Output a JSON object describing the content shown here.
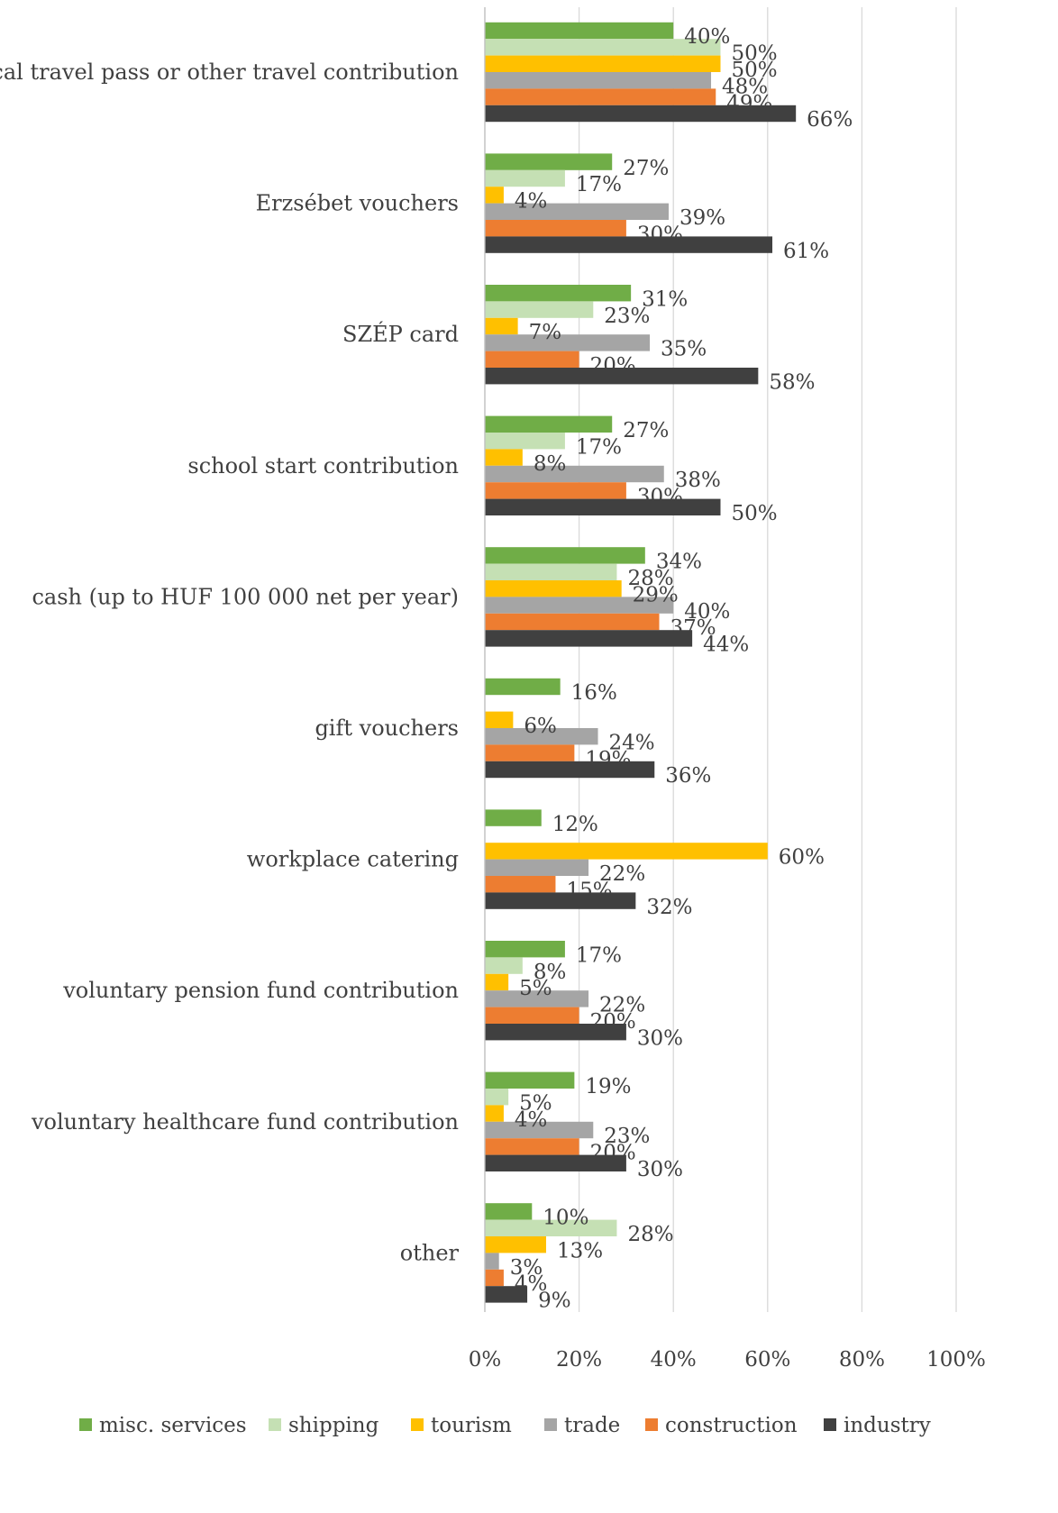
{
  "chart_data": {
    "type": "bar",
    "orientation": "horizontal",
    "title": "",
    "xlabel": "",
    "ylabel": "",
    "xlim": [
      0,
      100
    ],
    "x_ticks": [
      "0%",
      "20%",
      "40%",
      "60%",
      "80%",
      "100%"
    ],
    "value_format": "percent",
    "grid": true,
    "legend_position": "bottom",
    "categories": [
      "local travel pass or other travel contribution",
      "Erzsébet vouchers",
      "SZÉP card",
      "school start contribution",
      "cash (up to HUF 100 000 net per year)",
      "gift vouchers",
      "workplace catering",
      "voluntary pension fund contribution",
      "voluntary healthcare fund contribution",
      "other"
    ],
    "series": [
      {
        "name": "misc. services",
        "color": "#70AD47",
        "values": [
          40,
          27,
          31,
          27,
          34,
          16,
          12,
          17,
          19,
          10
        ]
      },
      {
        "name": "shipping",
        "color": "#C5E0B4",
        "values": [
          50,
          17,
          23,
          17,
          28,
          null,
          null,
          8,
          5,
          28
        ]
      },
      {
        "name": "tourism",
        "color": "#FFC000",
        "values": [
          50,
          4,
          7,
          8,
          29,
          6,
          60,
          5,
          4,
          13
        ]
      },
      {
        "name": "trade",
        "color": "#A5A5A5",
        "values": [
          48,
          39,
          35,
          38,
          40,
          24,
          22,
          22,
          23,
          3
        ]
      },
      {
        "name": "construction",
        "color": "#ED7D31",
        "values": [
          49,
          30,
          20,
          30,
          37,
          19,
          15,
          20,
          20,
          4
        ]
      },
      {
        "name": "industry",
        "color": "#404040",
        "values": [
          66,
          61,
          58,
          50,
          44,
          36,
          32,
          30,
          30,
          9
        ]
      }
    ]
  }
}
